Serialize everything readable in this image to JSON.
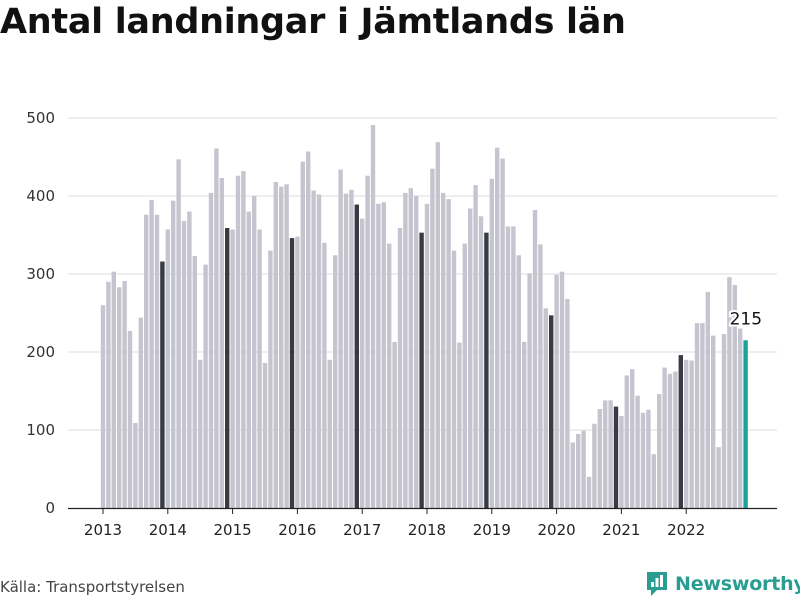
{
  "title": "Antal landningar i Jämtlands län",
  "source": "Källa: Transportstyrelsen",
  "brand": {
    "name": "Newsworthy",
    "icon": "newsworthy-logo-icon"
  },
  "colors": {
    "bar": "#c5c5cf",
    "highlight": "#3a3a45",
    "latest": "#1aa39a",
    "grid": "#dddddd",
    "axis": "#222222",
    "brand": "#2a9d93"
  },
  "chart_data": {
    "type": "bar",
    "title": "Antal landningar i Jämtlands län",
    "xlabel": "",
    "ylabel": "",
    "ylim": [
      0,
      500
    ],
    "y_ticks": [
      0,
      100,
      200,
      300,
      400,
      500
    ],
    "x_ticks": [
      "2013",
      "2014",
      "2015",
      "2016",
      "2017",
      "2018",
      "2019",
      "2020",
      "2021",
      "2022"
    ],
    "start": "2013-01",
    "frequency": "monthly",
    "grid": true,
    "highlight_month": "December",
    "last_value_label": "215",
    "values": [
      260,
      290,
      303,
      283,
      291,
      227,
      109,
      244,
      376,
      395,
      376,
      316,
      357,
      394,
      447,
      368,
      380,
      323,
      190,
      312,
      404,
      461,
      423,
      359,
      357,
      426,
      432,
      380,
      400,
      357,
      186,
      330,
      418,
      412,
      415,
      346,
      348,
      444,
      457,
      407,
      402,
      340,
      190,
      324,
      434,
      403,
      408,
      389,
      371,
      426,
      491,
      390,
      392,
      339,
      213,
      359,
      404,
      410,
      400,
      353,
      390,
      435,
      469,
      404,
      396,
      330,
      212,
      339,
      384,
      414,
      374,
      353,
      422,
      462,
      448,
      361,
      361,
      324,
      213,
      301,
      382,
      338,
      256,
      247,
      299,
      303,
      268,
      84,
      95,
      99,
      40,
      108,
      127,
      138,
      138,
      130,
      118,
      170,
      178,
      144,
      122,
      126,
      69,
      146,
      180,
      172,
      175,
      196,
      190,
      189,
      237,
      237,
      277,
      221,
      78,
      223,
      296,
      286,
      230,
      215
    ]
  }
}
